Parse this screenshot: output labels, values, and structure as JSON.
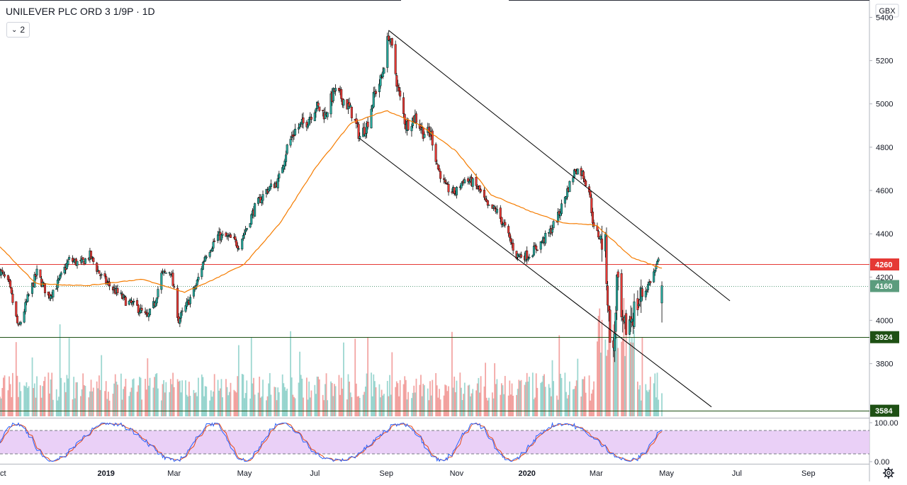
{
  "chart_data": {
    "type": "candlestick",
    "title": "UNILEVER PLC ORD 3 1/9P · 1D",
    "interval_button": "2",
    "currency": "GBX",
    "ylim": [
      3550,
      5480
    ],
    "price_ticks": [
      5400,
      5200,
      5000,
      4800,
      4600,
      4400,
      4200,
      4000,
      3800
    ],
    "price_tick_labels": [
      "5400",
      "5200",
      "5000",
      "4800",
      "4600",
      "4400",
      "4200",
      "4000",
      "3800"
    ],
    "x_tick_labels": [
      "Oct",
      "2019",
      "Mar",
      "May",
      "Jul",
      "Sep",
      "Nov",
      "2020",
      "Mar",
      "May",
      "Jul",
      "Sep"
    ],
    "x_tick_dates": [
      "2018-10-01",
      "2019-01-01",
      "2019-03-01",
      "2019-05-01",
      "2019-07-01",
      "2019-09-01",
      "2019-11-01",
      "2020-01-01",
      "2020-03-01",
      "2020-05-01",
      "2020-07-01",
      "2020-09-01"
    ],
    "x_range": [
      "2018-10-01",
      "2020-10-24"
    ],
    "price_keypoints": [
      [
        "2018-10-01",
        4230
      ],
      [
        "2018-10-09",
        4160
      ],
      [
        "2018-10-17",
        3960
      ],
      [
        "2018-10-25",
        4100
      ],
      [
        "2018-11-02",
        4220
      ],
      [
        "2018-11-12",
        4110
      ],
      [
        "2018-11-20",
        4170
      ],
      [
        "2018-11-30",
        4280
      ],
      [
        "2018-12-10",
        4260
      ],
      [
        "2018-12-18",
        4300
      ],
      [
        "2018-12-28",
        4200
      ],
      [
        "2019-01-08",
        4140
      ],
      [
        "2019-01-18",
        4090
      ],
      [
        "2019-01-28",
        4060
      ],
      [
        "2019-02-06",
        4010
      ],
      [
        "2019-02-12",
        4080
      ],
      [
        "2019-02-18",
        4210
      ],
      [
        "2019-02-26",
        4230
      ],
      [
        "2019-03-05",
        4000
      ],
      [
        "2019-03-12",
        4070
      ],
      [
        "2019-03-20",
        4160
      ],
      [
        "2019-03-28",
        4300
      ],
      [
        "2019-04-08",
        4390
      ],
      [
        "2019-04-18",
        4380
      ],
      [
        "2019-04-26",
        4350
      ],
      [
        "2019-05-03",
        4430
      ],
      [
        "2019-05-10",
        4520
      ],
      [
        "2019-05-20",
        4600
      ],
      [
        "2019-05-30",
        4640
      ],
      [
        "2019-06-07",
        4800
      ],
      [
        "2019-06-14",
        4880
      ],
      [
        "2019-06-24",
        4920
      ],
      [
        "2019-07-02",
        4990
      ],
      [
        "2019-07-10",
        4950
      ],
      [
        "2019-07-18",
        5060
      ],
      [
        "2019-07-26",
        5020
      ],
      [
        "2019-08-02",
        4960
      ],
      [
        "2019-08-09",
        4850
      ],
      [
        "2019-08-15",
        4900
      ],
      [
        "2019-08-22",
        5050
      ],
      [
        "2019-08-28",
        5120
      ],
      [
        "2019-09-03",
        5320
      ],
      [
        "2019-09-06",
        5250
      ],
      [
        "2019-09-11",
        5070
      ],
      [
        "2019-09-18",
        4900
      ],
      [
        "2019-09-26",
        4940
      ],
      [
        "2019-10-03",
        4870
      ],
      [
        "2019-10-10",
        4860
      ],
      [
        "2019-10-16",
        4700
      ],
      [
        "2019-10-23",
        4610
      ],
      [
        "2019-10-31",
        4590
      ],
      [
        "2019-11-07",
        4650
      ],
      [
        "2019-11-14",
        4640
      ],
      [
        "2019-11-21",
        4600
      ],
      [
        "2019-11-28",
        4520
      ],
      [
        "2019-12-05",
        4510
      ],
      [
        "2019-12-12",
        4440
      ],
      [
        "2019-12-18",
        4360
      ],
      [
        "2019-12-23",
        4300
      ],
      [
        "2020-01-02",
        4300
      ],
      [
        "2020-01-10",
        4340
      ],
      [
        "2020-01-20",
        4400
      ],
      [
        "2020-01-28",
        4480
      ],
      [
        "2020-02-05",
        4600
      ],
      [
        "2020-02-12",
        4700
      ],
      [
        "2020-02-18",
        4680
      ],
      [
        "2020-02-24",
        4600
      ],
      [
        "2020-02-28",
        4420
      ],
      [
        "2020-03-05",
        4380
      ],
      [
        "2020-03-09",
        4330
      ],
      [
        "2020-03-12",
        4000
      ],
      [
        "2020-03-16",
        3830
      ],
      [
        "2020-03-19",
        4180
      ],
      [
        "2020-03-24",
        3940
      ],
      [
        "2020-03-30",
        4000
      ],
      [
        "2020-04-06",
        4080
      ],
      [
        "2020-04-14",
        4150
      ],
      [
        "2020-04-21",
        4230
      ],
      [
        "2020-04-24",
        4270
      ],
      [
        "2020-04-27",
        4170
      ]
    ],
    "moving_average_keypoints": [
      [
        "2018-10-01",
        4340
      ],
      [
        "2018-11-01",
        4170
      ],
      [
        "2018-12-15",
        4160
      ],
      [
        "2019-02-01",
        4190
      ],
      [
        "2019-03-10",
        4130
      ],
      [
        "2019-04-05",
        4190
      ],
      [
        "2019-05-01",
        4260
      ],
      [
        "2019-06-01",
        4450
      ],
      [
        "2019-07-01",
        4700
      ],
      [
        "2019-08-01",
        4910
      ],
      [
        "2019-09-01",
        4970
      ],
      [
        "2019-10-01",
        4900
      ],
      [
        "2019-11-01",
        4780
      ],
      [
        "2019-12-01",
        4580
      ],
      [
        "2020-01-01",
        4510
      ],
      [
        "2020-02-01",
        4450
      ],
      [
        "2020-03-01",
        4440
      ],
      [
        "2020-04-01",
        4290
      ],
      [
        "2020-04-27",
        4240
      ]
    ],
    "horizontal_levels": [
      {
        "value": 4260,
        "label": "4260",
        "color": "#e53935"
      },
      {
        "value": 3924,
        "label": "3924",
        "color": "#1e5014"
      },
      {
        "value": 3584,
        "label": "3584",
        "color": "#1e5014"
      }
    ],
    "last_price": {
      "value": 4160,
      "label": "4160",
      "color": "#5b9c7d"
    },
    "trend_lines": [
      {
        "from": [
          "2019-09-03",
          5340
        ],
        "to": [
          "2020-06-25",
          4090
        ]
      },
      {
        "from": [
          "2019-08-09",
          4840
        ],
        "to": [
          "2020-06-09",
          3600
        ]
      }
    ],
    "oscillator": {
      "ylim": [
        0,
        100
      ],
      "upper": 80,
      "lower": 20,
      "tick_labels": [
        "100.00",
        "0.00"
      ],
      "band_color": "#e6c8f6",
      "k_color": "#2962ff",
      "d_color": "#e64a19"
    },
    "colors": {
      "up": "#26a69a",
      "down": "#e53935",
      "ma": "#f57c00",
      "trend": "#000000"
    }
  }
}
